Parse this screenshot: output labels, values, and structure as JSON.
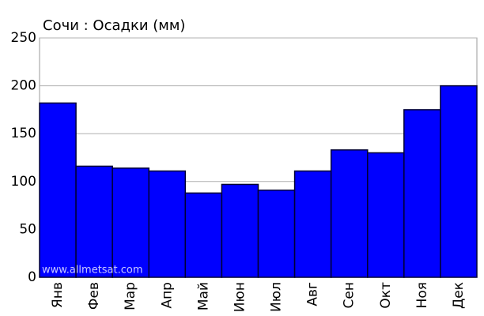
{
  "chart_data": {
    "type": "bar",
    "title": "Сочи : Осадки (мм)",
    "watermark": "www.allmetsat.com",
    "categories": [
      "Янв",
      "Фев",
      "Мар",
      "Апр",
      "Май",
      "Июн",
      "Июл",
      "Авг",
      "Сен",
      "Окт",
      "Ноя",
      "Дек"
    ],
    "values": [
      182,
      116,
      114,
      111,
      88,
      97,
      91,
      111,
      133,
      130,
      175,
      200
    ],
    "color": "#0000ff",
    "ylim": [
      0,
      250
    ],
    "yticks": [
      0,
      50,
      100,
      150,
      200,
      250
    ],
    "grid": true
  }
}
